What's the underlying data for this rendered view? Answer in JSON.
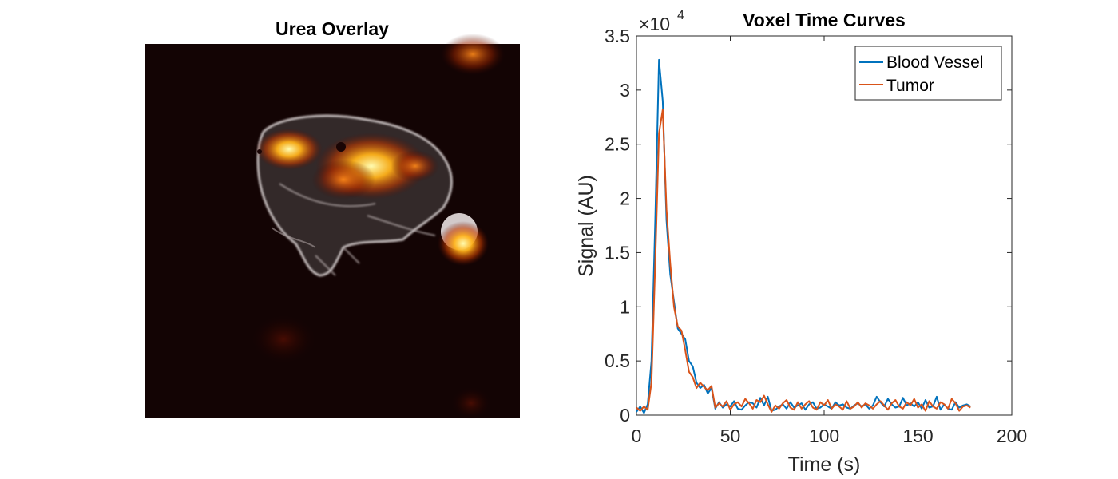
{
  "figure": {
    "left_panel": {
      "title": "Urea Overlay",
      "image_description_name": "urea-overlay-image"
    },
    "right_panel": {
      "title": "Voxel Time Curves"
    }
  },
  "chart_data": {
    "type": "line",
    "title": "Voxel Time Curves",
    "xlabel": "Time (s)",
    "ylabel": "Signal (AU)",
    "xlim": [
      0,
      200
    ],
    "ylim": [
      0,
      35000
    ],
    "xticks": [
      0,
      50,
      100,
      150,
      200
    ],
    "yticks": [
      0,
      5000,
      10000,
      15000,
      20000,
      25000,
      30000,
      35000
    ],
    "xtick_labels": [
      "0",
      "50",
      "100",
      "150",
      "200"
    ],
    "ytick_labels": [
      "0",
      "0.5",
      "1",
      "1.5",
      "2",
      "2.5",
      "3",
      "3.5"
    ],
    "exponent_label": "×10",
    "exponent_power": "4",
    "legend_position": "top-right",
    "series": [
      {
        "name": "Blood Vessel",
        "color": "#0072BD",
        "x": [
          0,
          2,
          4,
          6,
          8,
          10,
          12,
          14,
          16,
          18,
          20,
          22,
          24,
          26,
          28,
          30,
          32,
          34,
          36,
          38,
          40,
          42,
          44,
          46,
          48,
          50,
          52,
          54,
          56,
          58,
          60,
          62,
          64,
          66,
          68,
          70,
          72,
          74,
          76,
          78,
          80,
          82,
          84,
          86,
          88,
          90,
          92,
          94,
          96,
          98,
          100,
          102,
          104,
          106,
          108,
          110,
          112,
          114,
          116,
          118,
          120,
          122,
          124,
          126,
          128,
          130,
          132,
          134,
          136,
          138,
          140,
          142,
          144,
          146,
          148,
          150,
          152,
          154,
          156,
          158,
          160,
          162,
          164,
          166,
          168,
          170,
          172,
          174,
          176,
          178
        ],
        "y": [
          300,
          800,
          200,
          1000,
          5000,
          18000,
          32800,
          29000,
          18000,
          13000,
          10500,
          8000,
          7500,
          7000,
          5000,
          4500,
          3000,
          2500,
          2800,
          2000,
          2500,
          600,
          1200,
          700,
          1000,
          800,
          1300,
          600,
          500,
          900,
          1200,
          1100,
          700,
          1600,
          900,
          1700,
          400,
          500,
          800,
          1000,
          600,
          1200,
          700,
          900,
          1100,
          500,
          1000,
          1200,
          600,
          700,
          1000,
          800,
          600,
          1200,
          900,
          1000,
          700,
          600,
          900,
          1100,
          800,
          1000,
          600,
          900,
          1700,
          1200,
          800,
          1500,
          1000,
          700,
          800,
          1600,
          900,
          1100,
          800,
          1200,
          600,
          1400,
          700,
          800,
          1700,
          500,
          1000,
          600,
          500,
          1200,
          700,
          900,
          1000,
          800
        ]
      },
      {
        "name": "Tumor",
        "color": "#D95319",
        "x": [
          0,
          2,
          4,
          6,
          8,
          10,
          12,
          14,
          16,
          18,
          20,
          22,
          24,
          26,
          28,
          30,
          32,
          34,
          36,
          38,
          40,
          42,
          44,
          46,
          48,
          50,
          52,
          54,
          56,
          58,
          60,
          62,
          64,
          66,
          68,
          70,
          72,
          74,
          76,
          78,
          80,
          82,
          84,
          86,
          88,
          90,
          92,
          94,
          96,
          98,
          100,
          102,
          104,
          106,
          108,
          110,
          112,
          114,
          116,
          118,
          120,
          122,
          124,
          126,
          128,
          130,
          132,
          134,
          136,
          138,
          140,
          142,
          144,
          146,
          148,
          150,
          152,
          154,
          156,
          158,
          160,
          162,
          164,
          166,
          168,
          170,
          172,
          174,
          176,
          178
        ],
        "y": [
          700,
          400,
          800,
          500,
          3000,
          14000,
          26000,
          28200,
          19000,
          14000,
          10000,
          8200,
          7800,
          6000,
          4000,
          3500,
          2500,
          3000,
          2600,
          2300,
          2700,
          700,
          1100,
          800,
          1300,
          500,
          1000,
          1200,
          800,
          1500,
          1100,
          600,
          1400,
          1200,
          1800,
          1000,
          300,
          900,
          600,
          1100,
          1400,
          700,
          500,
          1200,
          600,
          1000,
          1300,
          700,
          500,
          1200,
          900,
          1400,
          600,
          1000,
          800,
          500,
          1300,
          600,
          800,
          1200,
          700,
          1100,
          900,
          600,
          1000,
          1300,
          900,
          500,
          1100,
          1400,
          800,
          600,
          1200,
          900,
          1500,
          700,
          1000,
          400,
          1300,
          800,
          600,
          1200,
          1000,
          600,
          1500,
          1100,
          400,
          800,
          900,
          700
        ]
      }
    ]
  }
}
